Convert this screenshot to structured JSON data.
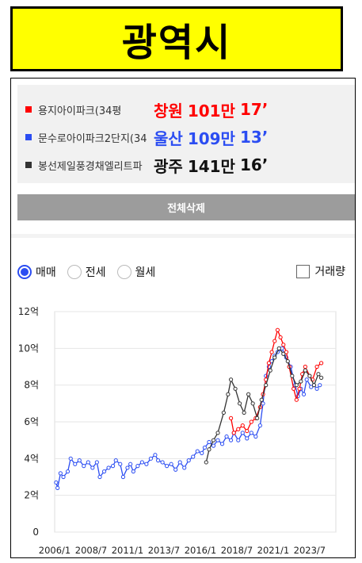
{
  "banner": {
    "title": "광역시"
  },
  "legend": [
    {
      "color": "#ff0000",
      "name": "용지아이파크(34평",
      "city": "창원",
      "price": "101만",
      "year": "17’"
    },
    {
      "color": "#2b4df2",
      "name": "문수로아이파크2단지(34",
      "city": "울산",
      "price": "109만",
      "year": "13’"
    },
    {
      "color": "#333333",
      "name": "봉선제일풍경채엘리트파",
      "city": "광주",
      "price": "141만",
      "year": "16’"
    }
  ],
  "delete_label": "전체삭제",
  "radios": [
    {
      "label": "매매",
      "selected": true
    },
    {
      "label": "전세",
      "selected": false
    },
    {
      "label": "월세",
      "selected": false
    }
  ],
  "volume_label": "거래량",
  "chart_data": {
    "type": "line",
    "x_ticks": [
      "2006/1",
      "2008/7",
      "2011/1",
      "2013/7",
      "2016/1",
      "2018/7",
      "2021/1",
      "2023/7"
    ],
    "y_ticks": [
      "0",
      "2억",
      "4억",
      "6억",
      "8억",
      "10억",
      "12억"
    ],
    "ylim": [
      0,
      12
    ],
    "xlim": [
      2006.0,
      2025.3
    ],
    "series": [
      {
        "name": "울산 문수로아이파크2단지",
        "color": "#2b4df2",
        "points": [
          [
            2006.1,
            2.7
          ],
          [
            2006.2,
            2.4
          ],
          [
            2006.4,
            3.2
          ],
          [
            2006.6,
            3.0
          ],
          [
            2006.9,
            3.3
          ],
          [
            2007.1,
            4.0
          ],
          [
            2007.4,
            3.7
          ],
          [
            2007.7,
            3.9
          ],
          [
            2008.0,
            3.6
          ],
          [
            2008.3,
            3.8
          ],
          [
            2008.6,
            3.5
          ],
          [
            2008.9,
            3.8
          ],
          [
            2009.1,
            3.0
          ],
          [
            2009.4,
            3.3
          ],
          [
            2009.7,
            3.5
          ],
          [
            2010.0,
            3.6
          ],
          [
            2010.2,
            3.9
          ],
          [
            2010.5,
            3.7
          ],
          [
            2010.7,
            3.0
          ],
          [
            2011.0,
            3.5
          ],
          [
            2011.2,
            3.7
          ],
          [
            2011.4,
            3.3
          ],
          [
            2011.7,
            3.6
          ],
          [
            2012.0,
            3.8
          ],
          [
            2012.3,
            3.7
          ],
          [
            2012.6,
            4.0
          ],
          [
            2012.9,
            4.2
          ],
          [
            2013.1,
            3.9
          ],
          [
            2013.4,
            3.8
          ],
          [
            2013.7,
            3.6
          ],
          [
            2014.0,
            3.7
          ],
          [
            2014.3,
            3.4
          ],
          [
            2014.6,
            3.8
          ],
          [
            2014.9,
            3.5
          ],
          [
            2015.2,
            3.9
          ],
          [
            2015.5,
            4.1
          ],
          [
            2015.8,
            4.4
          ],
          [
            2016.1,
            4.3
          ],
          [
            2016.3,
            4.6
          ],
          [
            2016.6,
            4.9
          ],
          [
            2016.9,
            4.7
          ],
          [
            2017.2,
            5.0
          ],
          [
            2017.5,
            4.8
          ],
          [
            2017.8,
            5.2
          ],
          [
            2018.1,
            5.0
          ],
          [
            2018.3,
            5.4
          ],
          [
            2018.6,
            5.0
          ],
          [
            2018.9,
            5.4
          ],
          [
            2019.2,
            5.1
          ],
          [
            2019.5,
            5.4
          ],
          [
            2019.8,
            5.2
          ],
          [
            2020.1,
            5.8
          ],
          [
            2020.3,
            7.0
          ],
          [
            2020.5,
            8.5
          ],
          [
            2020.7,
            9.0
          ],
          [
            2020.9,
            9.3
          ],
          [
            2021.1,
            9.6
          ],
          [
            2021.3,
            9.8
          ],
          [
            2021.6,
            10.0
          ],
          [
            2021.9,
            9.5
          ],
          [
            2022.2,
            9.0
          ],
          [
            2022.5,
            8.0
          ],
          [
            2022.7,
            7.4
          ],
          [
            2022.9,
            7.8
          ],
          [
            2023.1,
            7.5
          ],
          [
            2023.3,
            8.3
          ],
          [
            2023.6,
            7.9
          ],
          [
            2023.8,
            8.0
          ],
          [
            2024.0,
            7.8
          ],
          [
            2024.2,
            8.0
          ]
        ]
      },
      {
        "name": "창원 용지아이파크",
        "color": "#ff0000",
        "points": [
          [
            2018.1,
            6.2
          ],
          [
            2018.3,
            5.4
          ],
          [
            2018.6,
            5.6
          ],
          [
            2018.9,
            5.8
          ],
          [
            2019.2,
            5.5
          ],
          [
            2019.5,
            6.0
          ],
          [
            2019.8,
            6.2
          ],
          [
            2020.1,
            6.8
          ],
          [
            2020.3,
            7.5
          ],
          [
            2020.5,
            8.3
          ],
          [
            2020.7,
            9.2
          ],
          [
            2020.9,
            9.8
          ],
          [
            2021.1,
            10.4
          ],
          [
            2021.3,
            11.0
          ],
          [
            2021.5,
            10.6
          ],
          [
            2021.7,
            10.2
          ],
          [
            2021.9,
            9.8
          ],
          [
            2022.1,
            9.0
          ],
          [
            2022.4,
            7.8
          ],
          [
            2022.6,
            7.2
          ],
          [
            2022.8,
            7.8
          ],
          [
            2023.0,
            8.6
          ],
          [
            2023.2,
            9.0
          ],
          [
            2023.5,
            8.5
          ],
          [
            2023.7,
            8.3
          ],
          [
            2024.0,
            9.0
          ],
          [
            2024.3,
            9.2
          ]
        ]
      },
      {
        "name": "광주 봉선제일풍경채엘리트파",
        "color": "#333333",
        "points": [
          [
            2016.4,
            3.8
          ],
          [
            2016.6,
            4.5
          ],
          [
            2016.9,
            5.0
          ],
          [
            2017.2,
            5.4
          ],
          [
            2017.6,
            6.5
          ],
          [
            2017.9,
            7.5
          ],
          [
            2018.1,
            8.3
          ],
          [
            2018.4,
            7.8
          ],
          [
            2018.7,
            7.0
          ],
          [
            2019.0,
            6.5
          ],
          [
            2019.3,
            7.5
          ],
          [
            2019.6,
            7.0
          ],
          [
            2019.9,
            6.2
          ],
          [
            2020.2,
            7.2
          ],
          [
            2020.5,
            8.0
          ],
          [
            2020.8,
            8.8
          ],
          [
            2021.1,
            9.5
          ],
          [
            2021.4,
            10.0
          ],
          [
            2021.7,
            9.7
          ],
          [
            2022.0,
            9.3
          ],
          [
            2022.3,
            8.5
          ],
          [
            2022.6,
            8.0
          ],
          [
            2022.9,
            8.2
          ],
          [
            2023.2,
            8.8
          ],
          [
            2023.5,
            8.5
          ],
          [
            2023.8,
            8.0
          ],
          [
            2024.1,
            8.6
          ],
          [
            2024.3,
            8.4
          ]
        ]
      }
    ]
  }
}
